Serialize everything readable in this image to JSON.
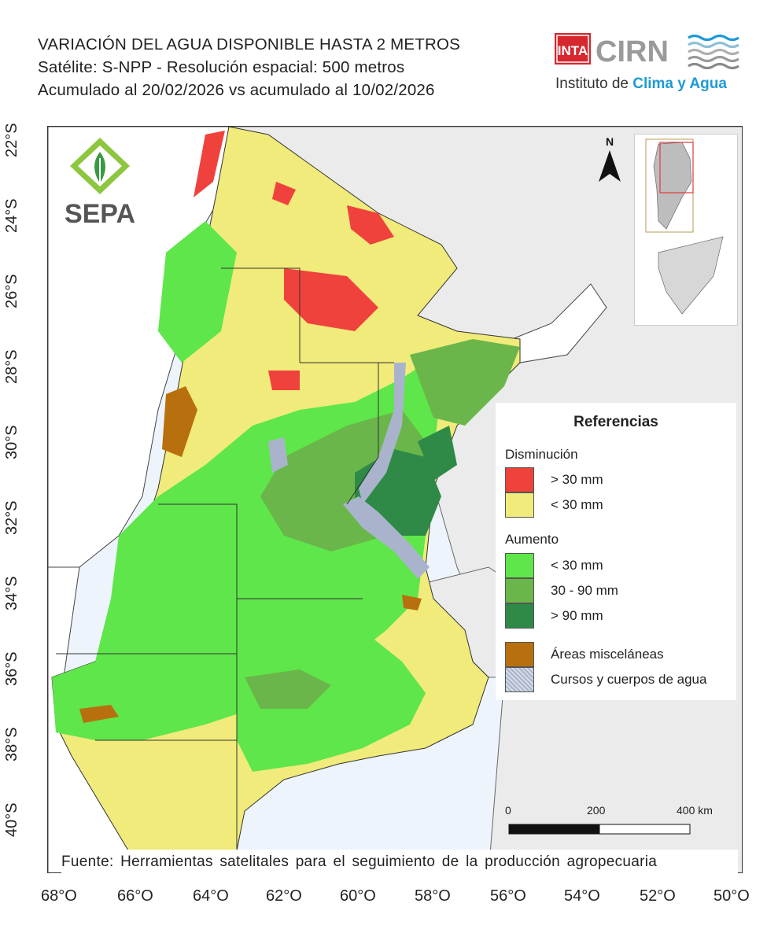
{
  "header": {
    "line1": "VARIACIÓN DEL AGUA DISPONIBLE HASTA 2 METROS",
    "line2": "Satélite: S-NPP - Resolución espacial: 500 metros",
    "line3": "Acumulado al 20/02/2026 vs acumulado al 10/02/2026"
  },
  "logos": {
    "inta": "INTA",
    "cirn": "CIRN",
    "institute_prefix": "Instituto de ",
    "institute_highlight": "Clima y Agua",
    "sepa": "SEPA"
  },
  "axes": {
    "lat_labels": [
      "22°S",
      "24°S",
      "26°S",
      "28°S",
      "30°S",
      "32°S",
      "34°S",
      "36°S",
      "38°S",
      "40°S"
    ],
    "lon_labels": [
      "68°O",
      "66°O",
      "64°O",
      "62°O",
      "60°O",
      "58°O",
      "56°O",
      "54°O",
      "52°O",
      "50°O"
    ]
  },
  "north_arrow": "N",
  "legend": {
    "title": "Referencias",
    "decrease_heading": "Disminución",
    "increase_heading": "Aumento",
    "items": [
      {
        "label": "> 30 mm",
        "color": "#f0423c"
      },
      {
        "label": "< 30 mm",
        "color": "#f0eb7a"
      },
      {
        "label": "< 30 mm",
        "color": "#5ee64a"
      },
      {
        "label": "30 - 90 mm",
        "color": "#6ab64a"
      },
      {
        "label": "> 90 mm",
        "color": "#2e8a46"
      },
      {
        "label": "Áreas misceláneas",
        "color": "#b8700e"
      },
      {
        "label": "Cursos y cuerpos de agua",
        "color": "#a9b4cc"
      }
    ]
  },
  "scale_bar": {
    "labels": [
      "0",
      "200",
      "400 km"
    ]
  },
  "source": "Fuente: Herramientas satelitales para el seguimiento de la producción agropecuaria",
  "colors": {
    "sea": "#eef4fb",
    "neighbor_land": "#ebebeb",
    "border": "#333333"
  }
}
